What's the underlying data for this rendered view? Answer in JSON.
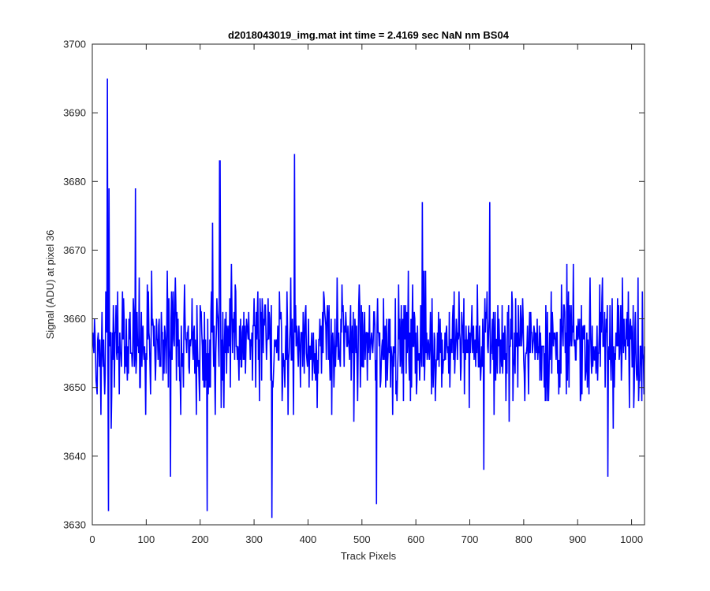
{
  "chart_data": {
    "type": "line",
    "title": "d2018043019_img.mat int time = 2.4169 sec  NaN nm BS04",
    "xlabel": "Track Pixels",
    "ylabel": "Signal (ADU) at pixel 36",
    "xlim": [
      0,
      1024
    ],
    "ylim": [
      3630,
      3700
    ],
    "xticks": [
      0,
      100,
      200,
      300,
      400,
      500,
      600,
      700,
      800,
      900,
      1000
    ],
    "yticks": [
      3630,
      3640,
      3650,
      3660,
      3670,
      3680,
      3690,
      3700
    ],
    "grid": false,
    "line_color": "#0000ff",
    "baseline": 3656.5,
    "noise_amplitude": 7.5,
    "sample_count": 1024,
    "series": [
      {
        "x_start": 1,
        "x_step": 1,
        "notable_points": [
          {
            "x": 28,
            "y": 3695
          },
          {
            "x": 30,
            "y": 3632
          },
          {
            "x": 31,
            "y": 3679
          },
          {
            "x": 80,
            "y": 3679
          },
          {
            "x": 145,
            "y": 3637
          },
          {
            "x": 213,
            "y": 3632
          },
          {
            "x": 223,
            "y": 3674
          },
          {
            "x": 236,
            "y": 3683
          },
          {
            "x": 237,
            "y": 3683
          },
          {
            "x": 333,
            "y": 3631
          },
          {
            "x": 375,
            "y": 3684
          },
          {
            "x": 527,
            "y": 3633
          },
          {
            "x": 612,
            "y": 3677
          },
          {
            "x": 726,
            "y": 3638
          },
          {
            "x": 737,
            "y": 3677
          },
          {
            "x": 956,
            "y": 3637
          },
          {
            "x": 1012,
            "y": 3666
          }
        ]
      }
    ]
  }
}
